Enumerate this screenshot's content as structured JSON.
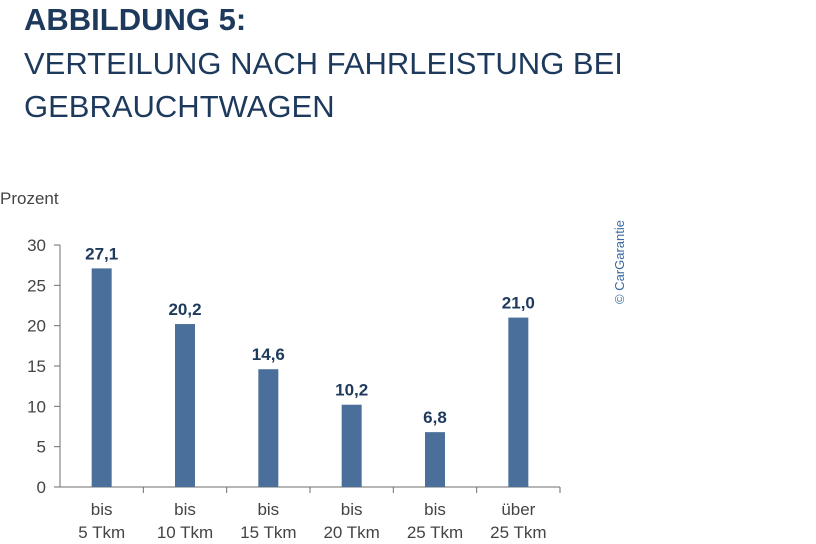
{
  "header": {
    "figure_label": "ABBILDUNG 5:",
    "title_line1": "VERTEILUNG NACH FAHRLEISTUNG BEI",
    "title_line2": "GEBRAUCHTWAGEN"
  },
  "credit": "© CarGarantie",
  "colors": {
    "bar": "#4a6f9a",
    "label": "#1d3a5c",
    "axis": "#6e6e6e",
    "text": "#444444"
  },
  "chart_data": {
    "type": "bar",
    "ylabel": "Prozent",
    "ylim": [
      0,
      30
    ],
    "yticks": [
      0,
      5,
      10,
      15,
      20,
      25,
      30
    ],
    "categories": [
      {
        "line1": "bis",
        "line2": "5 Tkm"
      },
      {
        "line1": "bis",
        "line2": "10 Tkm"
      },
      {
        "line1": "bis",
        "line2": "15 Tkm"
      },
      {
        "line1": "bis",
        "line2": "20 Tkm"
      },
      {
        "line1": "bis",
        "line2": "25 Tkm"
      },
      {
        "line1": "über",
        "line2": "25 Tkm"
      }
    ],
    "values": [
      27.1,
      20.2,
      14.6,
      10.2,
      6.8,
      21.0
    ],
    "value_labels": [
      "27,1",
      "20,2",
      "14,6",
      "10,2",
      "6,8",
      "21,0"
    ],
    "grid": false
  }
}
